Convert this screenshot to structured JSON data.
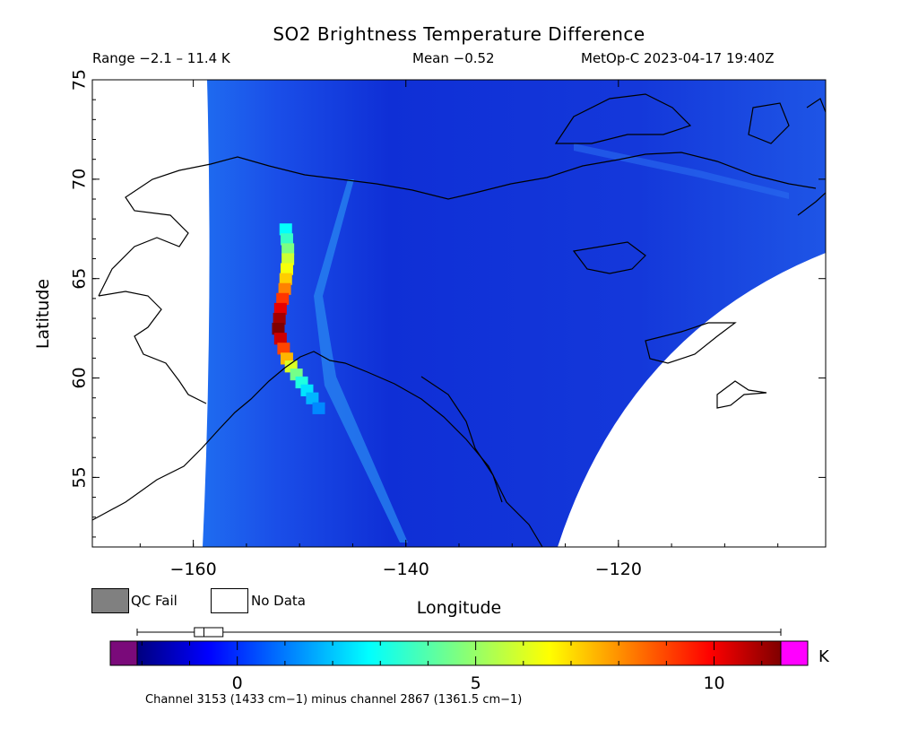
{
  "title": "SO2 Brightness Temperature Difference",
  "range_text": "Range −2.1 – 11.4 K",
  "mean_text": "Mean −0.52",
  "satellite_text": "MetOp-C 2023-04-17 19:40Z",
  "legend": {
    "qc_fail": "QC Fail",
    "no_data": "No Data",
    "qc_fail_color": "#808080",
    "no_data_color": "#ffffff"
  },
  "colorbar": {
    "unit": "K",
    "min": -2.1,
    "max": 11.4,
    "ticks": [
      0,
      5,
      10
    ],
    "tick_labels": [
      "0",
      "5",
      "10"
    ],
    "under_color": "#7a0a7a",
    "over_color": "#ff00ff",
    "caption": "Channel 3153 (1433 cm−1) minus channel 2867 (1361.5 cm−1)",
    "box_plot": {
      "whisker_low": -2.1,
      "q1": -0.9,
      "median": -0.7,
      "q3": -0.3,
      "whisker_high": 11.4
    }
  },
  "chart_data": {
    "type": "heatmap",
    "title": "SO2 Brightness Temperature Difference",
    "xlabel": "Longitude",
    "ylabel": "Latitude",
    "xlim": [
      -169.5,
      -100.5
    ],
    "ylim": [
      51.5,
      75
    ],
    "x_ticks": [
      -160,
      -140,
      -120
    ],
    "x_tick_labels": [
      "−160",
      "−140",
      "−120"
    ],
    "y_ticks": [
      55,
      60,
      65,
      70,
      75
    ],
    "y_tick_labels": [
      "55",
      "60",
      "65",
      "70",
      "75"
    ],
    "background_value": -0.5,
    "plume_segments": [
      {
        "lat": 67.5,
        "lon": -151.3,
        "value": 2.8
      },
      {
        "lat": 67.0,
        "lon": -151.2,
        "value": 3.6
      },
      {
        "lat": 66.5,
        "lon": -151.1,
        "value": 4.6
      },
      {
        "lat": 66.0,
        "lon": -151.1,
        "value": 5.8
      },
      {
        "lat": 65.5,
        "lon": -151.2,
        "value": 6.4
      },
      {
        "lat": 65.0,
        "lon": -151.3,
        "value": 7.2
      },
      {
        "lat": 64.5,
        "lon": -151.4,
        "value": 8.2
      },
      {
        "lat": 64.0,
        "lon": -151.6,
        "value": 9.2
      },
      {
        "lat": 63.5,
        "lon": -151.8,
        "value": 10.2
      },
      {
        "lat": 63.0,
        "lon": -151.9,
        "value": 11.0
      },
      {
        "lat": 62.5,
        "lon": -152.0,
        "value": 11.4
      },
      {
        "lat": 62.0,
        "lon": -151.8,
        "value": 10.5
      },
      {
        "lat": 61.5,
        "lon": -151.5,
        "value": 9.0
      },
      {
        "lat": 61.0,
        "lon": -151.2,
        "value": 7.5
      },
      {
        "lat": 60.6,
        "lon": -150.8,
        "value": 6.0
      },
      {
        "lat": 60.2,
        "lon": -150.3,
        "value": 4.5
      },
      {
        "lat": 59.8,
        "lon": -149.8,
        "value": 3.2
      },
      {
        "lat": 59.4,
        "lon": -149.3,
        "value": 2.4
      },
      {
        "lat": 59.0,
        "lon": -148.8,
        "value": 1.8
      },
      {
        "lat": 58.5,
        "lon": -148.2,
        "value": 1.2
      }
    ],
    "grid": false
  }
}
